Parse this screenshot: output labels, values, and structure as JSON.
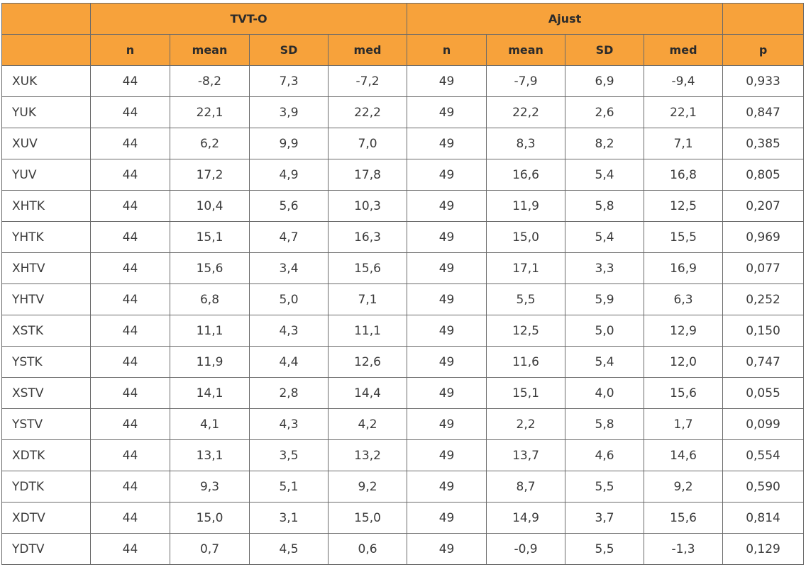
{
  "table": {
    "groups": [
      "TVT-O",
      "Ajust"
    ],
    "columns": [
      "n",
      "mean",
      "SD",
      "med",
      "n",
      "mean",
      "SD",
      "med",
      "p"
    ],
    "rows": [
      [
        "XUK",
        "44",
        "-8,2",
        "7,3",
        "-7,2",
        "49",
        "-7,9",
        "6,9",
        "-9,4",
        "0,933"
      ],
      [
        "YUK",
        "44",
        "22,1",
        "3,9",
        "22,2",
        "49",
        "22,2",
        "2,6",
        "22,1",
        "0,847"
      ],
      [
        "XUV",
        "44",
        "6,2",
        "9,9",
        "7,0",
        "49",
        "8,3",
        "8,2",
        "7,1",
        "0,385"
      ],
      [
        "YUV",
        "44",
        "17,2",
        "4,9",
        "17,8",
        "49",
        "16,6",
        "5,4",
        "16,8",
        "0,805"
      ],
      [
        "XHTK",
        "44",
        "10,4",
        "5,6",
        "10,3",
        "49",
        "11,9",
        "5,8",
        "12,5",
        "0,207"
      ],
      [
        "YHTK",
        "44",
        "15,1",
        "4,7",
        "16,3",
        "49",
        "15,0",
        "5,4",
        "15,5",
        "0,969"
      ],
      [
        "XHTV",
        "44",
        "15,6",
        "3,4",
        "15,6",
        "49",
        "17,1",
        "3,3",
        "16,9",
        "0,077"
      ],
      [
        "YHTV",
        "44",
        "6,8",
        "5,0",
        "7,1",
        "49",
        "5,5",
        "5,9",
        "6,3",
        "0,252"
      ],
      [
        "XSTK",
        "44",
        "11,1",
        "4,3",
        "11,1",
        "49",
        "12,5",
        "5,0",
        "12,9",
        "0,150"
      ],
      [
        "YSTK",
        "44",
        "11,9",
        "4,4",
        "12,6",
        "49",
        "11,6",
        "5,4",
        "12,0",
        "0,747"
      ],
      [
        "XSTV",
        "44",
        "14,1",
        "2,8",
        "14,4",
        "49",
        "15,1",
        "4,0",
        "15,6",
        "0,055"
      ],
      [
        "YSTV",
        "44",
        "4,1",
        "4,3",
        "4,2",
        "49",
        "2,2",
        "5,8",
        "1,7",
        "0,099"
      ],
      [
        "XDTK",
        "44",
        "13,1",
        "3,5",
        "13,2",
        "49",
        "13,7",
        "4,6",
        "14,6",
        "0,554"
      ],
      [
        "YDTK",
        "44",
        "9,3",
        "5,1",
        "9,2",
        "49",
        "8,7",
        "5,5",
        "9,2",
        "0,590"
      ],
      [
        "XDTV",
        "44",
        "15,0",
        "3,1",
        "15,0",
        "49",
        "14,9",
        "3,7",
        "15,6",
        "0,814"
      ],
      [
        "YDTV",
        "44",
        "0,7",
        "4,5",
        "0,6",
        "49",
        "-0,9",
        "5,5",
        "-1,3",
        "0,129"
      ]
    ]
  }
}
